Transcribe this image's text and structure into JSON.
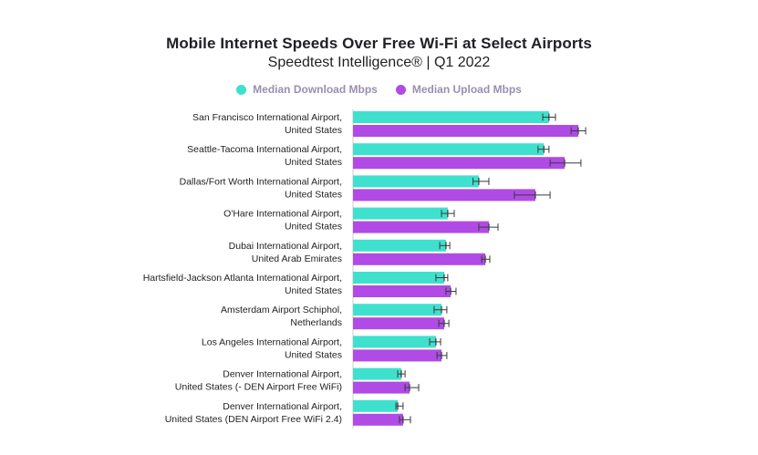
{
  "colors": {
    "download": "#40e0cf",
    "upload": "#b04be6",
    "axis": "#cccccc",
    "error": "#3a3a3a"
  },
  "chart_data": {
    "type": "bar",
    "orientation": "horizontal",
    "title": "Mobile Internet Speeds Over Free Wi-Fi at Select Airports",
    "subtitle": "Speedtest Intelligence® | Q1 2022",
    "legend_position": "top",
    "grid": false,
    "xlim": [
      0,
      100
    ],
    "categories": [
      [
        "San Francisco International Airport,",
        "United States"
      ],
      [
        "Seattle-Tacoma International Airport,",
        "United States"
      ],
      [
        "Dallas/Fort Worth International Airport,",
        "United States"
      ],
      [
        "O'Hare International Airport,",
        "United States"
      ],
      [
        "Dubai International Airport,",
        "United Arab Emirates"
      ],
      [
        "Hartsfield-Jackson Atlanta International Airport,",
        "United States"
      ],
      [
        "Amsterdam Airport Schiphol,",
        "Netherlands"
      ],
      [
        "Los Angeles International Airport,",
        "United States"
      ],
      [
        "Denver International Airport,",
        "United States (- DEN Airport Free WiFi)"
      ],
      [
        "Denver International Airport,",
        "United States (DEN Airport Free WiFi 2.4)"
      ]
    ],
    "series": [
      {
        "name": "Median Download Mbps",
        "values": [
          87.7,
          85.4,
          56.3,
          42.4,
          41.6,
          40.8,
          39.6,
          37.1,
          21.6,
          20.0
        ],
        "error": [
          [
            84.9,
            90.6
          ],
          [
            82.8,
            87.7
          ],
          [
            53.7,
            60.8
          ],
          [
            39.6,
            45.3
          ],
          [
            38.8,
            43.3
          ],
          [
            37.1,
            42.4
          ],
          [
            36.3,
            42.0
          ],
          [
            34.3,
            39.2
          ],
          [
            20.0,
            23.3
          ],
          [
            19.2,
            22.4
          ]
        ]
      },
      {
        "name": "Median Upload Mbps",
        "values": [
          100.8,
          94.7,
          81.6,
          60.8,
          59.2,
          43.7,
          40.8,
          39.6,
          25.3,
          22.4
        ],
        "error": [
          [
            97.6,
            104.1
          ],
          [
            88.2,
            102.0
          ],
          [
            72.2,
            88.2
          ],
          [
            56.3,
            64.9
          ],
          [
            57.6,
            61.2
          ],
          [
            41.6,
            46.1
          ],
          [
            38.4,
            42.9
          ],
          [
            37.6,
            42.0
          ],
          [
            23.3,
            29.4
          ],
          [
            20.8,
            25.7
          ]
        ]
      }
    ]
  }
}
